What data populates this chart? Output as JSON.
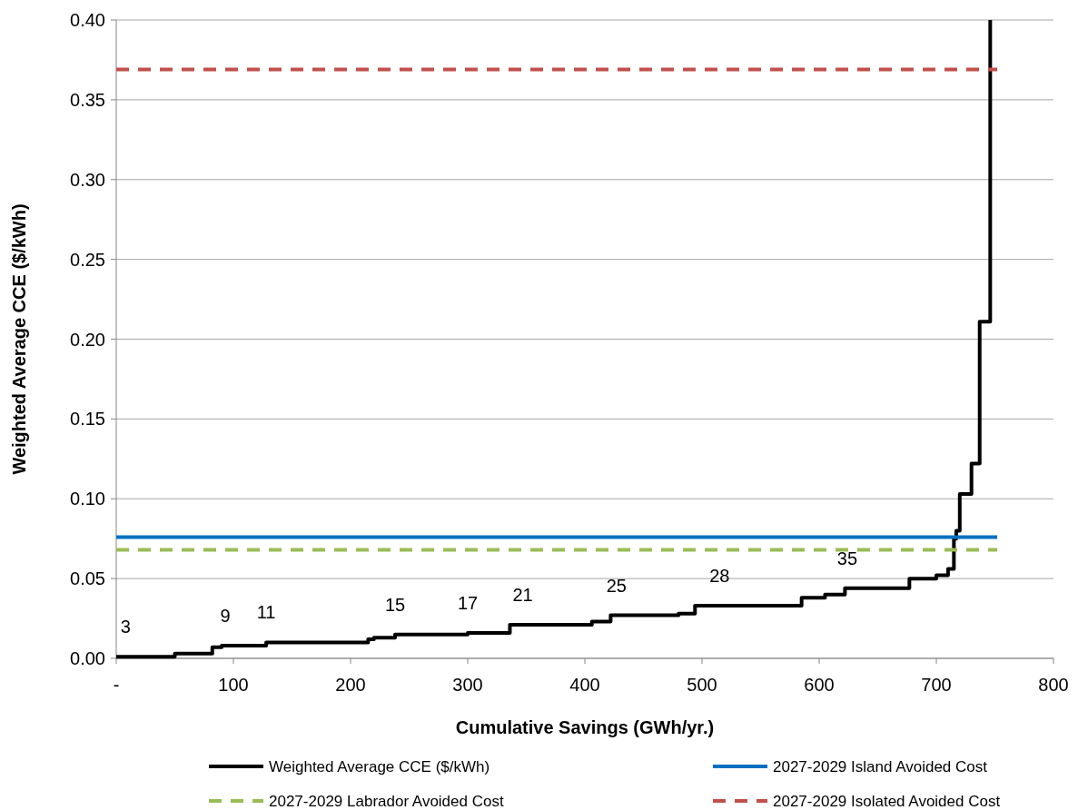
{
  "chart_data": {
    "type": "step",
    "xlabel": "Cumulative Savings (GWh/yr.)",
    "ylabel": "Weighted Average CCE ($/kWh)",
    "xlim": [
      0,
      800
    ],
    "xticks": [
      {
        "value": 0,
        "label": "-"
      },
      100,
      200,
      300,
      400,
      500,
      600,
      700,
      800
    ],
    "ylim": [
      0,
      0.4
    ],
    "yticks": [
      {
        "value": 0,
        "label": "0.00"
      },
      {
        "value": 0.05,
        "label": "0.05"
      },
      {
        "value": 0.1,
        "label": "0.10"
      },
      {
        "value": 0.15,
        "label": "0.15"
      },
      {
        "value": 0.2,
        "label": "0.20"
      },
      {
        "value": 0.25,
        "label": "0.25"
      },
      {
        "value": 0.3,
        "label": "0.30"
      },
      {
        "value": 0.35,
        "label": "0.35"
      },
      {
        "value": 0.4,
        "label": "0.40"
      }
    ],
    "grid": "y",
    "legend": "bottom",
    "series": [
      {
        "name": "Weighted Average CCE ($/kWh)",
        "color": "#000000",
        "line_style": "solid",
        "x": [
          0,
          50,
          82,
          90,
          128,
          215,
          220,
          238,
          300,
          336,
          406,
          422,
          480,
          494,
          585,
          605,
          622,
          677,
          700,
          710,
          715,
          717,
          720,
          722,
          730,
          737,
          745,
          746
        ],
        "values": [
          0.001,
          0.003,
          0.007,
          0.008,
          0.01,
          0.012,
          0.013,
          0.015,
          0.016,
          0.021,
          0.023,
          0.027,
          0.028,
          0.033,
          0.038,
          0.04,
          0.044,
          0.05,
          0.052,
          0.056,
          0.075,
          0.08,
          0.103,
          0.103,
          0.122,
          0.211,
          0.211,
          0.4
        ]
      },
      {
        "name": "2027-2029 Island Avoided Cost",
        "color": "#0070c0",
        "type": "line",
        "line_style": "solid",
        "x": [
          0,
          752
        ],
        "values": [
          0.076,
          0.076
        ]
      },
      {
        "name": "2027-2029 Labrador Avoided Cost",
        "color": "#9bbb59",
        "type": "line",
        "line_style": "dashed",
        "x": [
          0,
          752
        ],
        "values": [
          0.068,
          0.068
        ]
      },
      {
        "name": "2027-2029 Isolated Avoided Cost",
        "color": "#c0504d",
        "type": "line",
        "line_style": "dashed",
        "x": [
          0,
          752
        ],
        "values": [
          0.369,
          0.369
        ]
      }
    ],
    "annotations": [
      {
        "text": "3",
        "x": 8,
        "y": 0.001
      },
      {
        "text": "9",
        "x": 93,
        "y": 0.008
      },
      {
        "text": "11",
        "x": 128,
        "y": 0.01
      },
      {
        "text": "15",
        "x": 238,
        "y": 0.015
      },
      {
        "text": "17",
        "x": 300,
        "y": 0.016
      },
      {
        "text": "21",
        "x": 347,
        "y": 0.021
      },
      {
        "text": "25",
        "x": 427,
        "y": 0.027
      },
      {
        "text": "28",
        "x": 515,
        "y": 0.033
      },
      {
        "text": "35",
        "x": 624,
        "y": 0.044
      }
    ]
  }
}
